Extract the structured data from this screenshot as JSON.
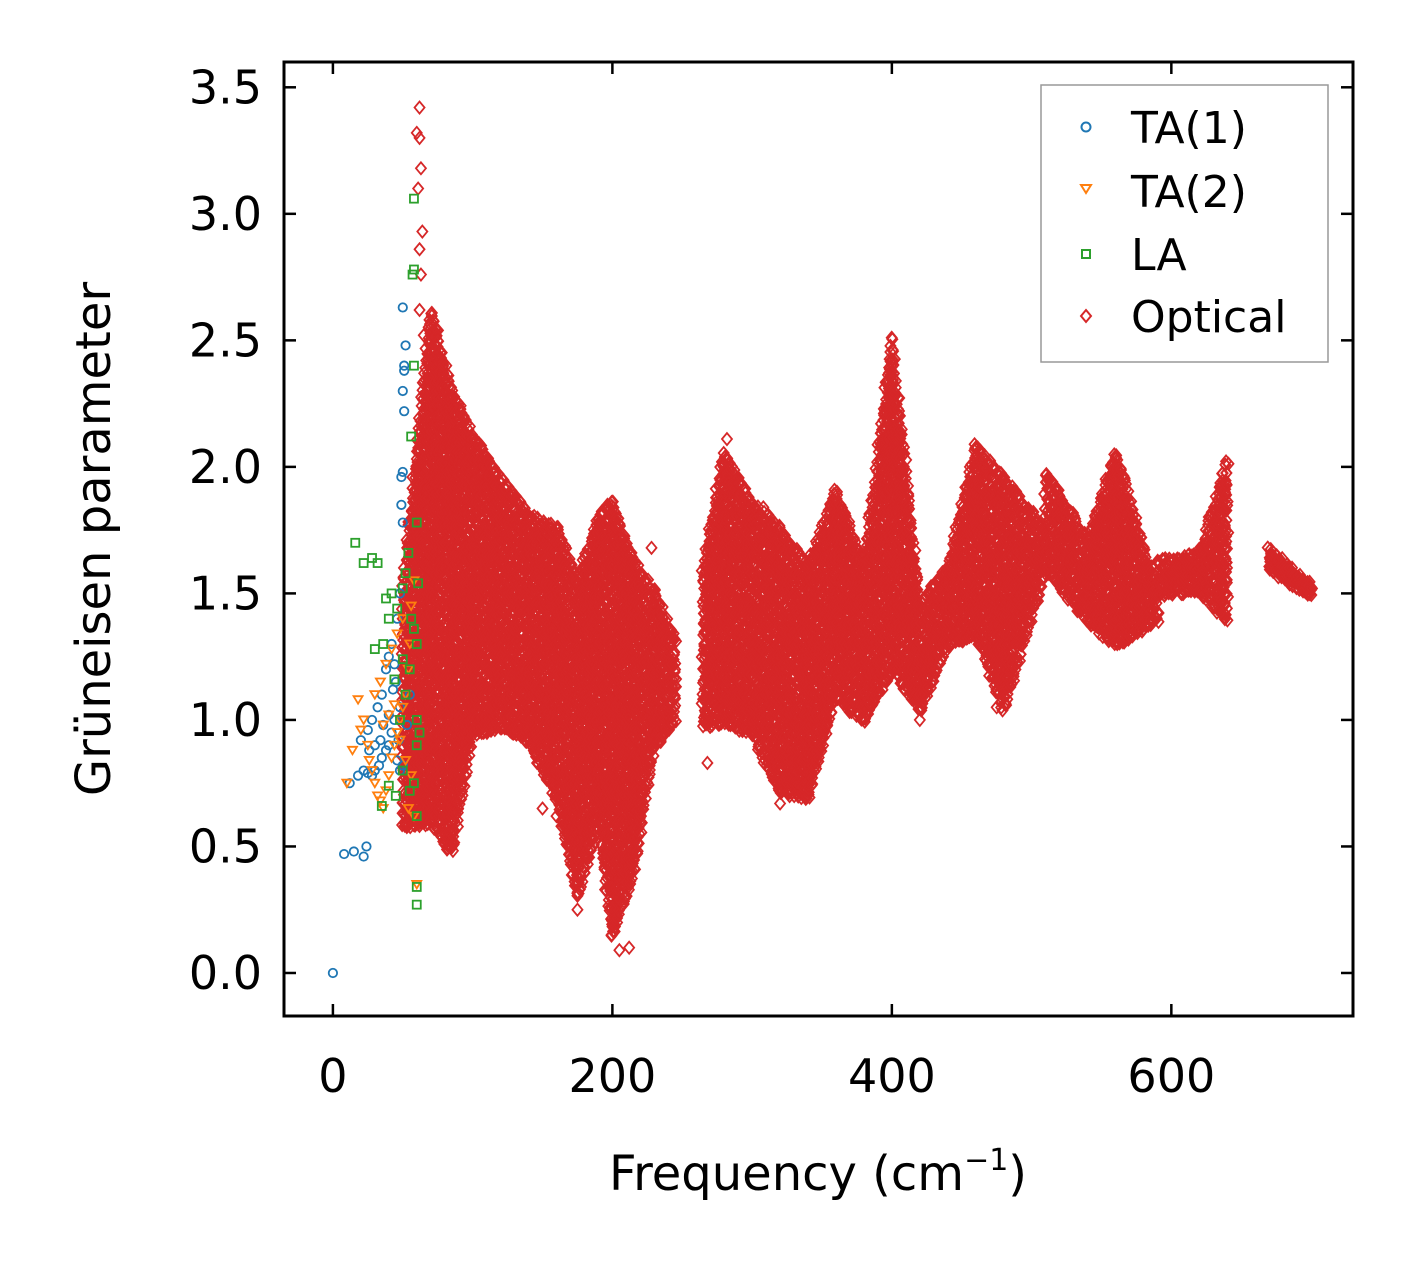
{
  "chart_data": {
    "type": "scatter",
    "title": "",
    "xlabel": "Frequency (cm",
    "xlabel_sup": "−1",
    "xlabel_close": ")",
    "ylabel": "Grüneisen parameter",
    "xlim": [
      -35,
      730
    ],
    "ylim": [
      -0.17,
      3.6
    ],
    "xticks": [
      0,
      200,
      400,
      600
    ],
    "xtick_labels": [
      "0",
      "200",
      "400",
      "600"
    ],
    "yticks": [
      0.0,
      0.5,
      1.0,
      1.5,
      2.0,
      2.5,
      3.0,
      3.5
    ],
    "ytick_labels": [
      "0.0",
      "0.5",
      "1.0",
      "1.5",
      "2.0",
      "2.5",
      "3.0",
      "3.5"
    ],
    "grid": false,
    "legend_position": "top-right",
    "series": [
      {
        "name": "TA(1)",
        "marker": "circle",
        "color": "#1f77b4",
        "points": [
          [
            0,
            0.0
          ],
          [
            8,
            0.47
          ],
          [
            15,
            0.48
          ],
          [
            22,
            0.46
          ],
          [
            24,
            0.5
          ],
          [
            12,
            0.75
          ],
          [
            18,
            0.78
          ],
          [
            22,
            0.8
          ],
          [
            25,
            0.79
          ],
          [
            28,
            0.78
          ],
          [
            30,
            0.8
          ],
          [
            33,
            0.82
          ],
          [
            35,
            0.85
          ],
          [
            38,
            0.88
          ],
          [
            40,
            0.9
          ],
          [
            42,
            0.95
          ],
          [
            44,
            1.0
          ],
          [
            46,
            0.84
          ],
          [
            48,
            0.8
          ],
          [
            50,
            0.82
          ],
          [
            25,
            0.96
          ],
          [
            28,
            1.0
          ],
          [
            32,
            1.05
          ],
          [
            35,
            1.1
          ],
          [
            38,
            1.2
          ],
          [
            40,
            1.25
          ],
          [
            42,
            1.3
          ],
          [
            45,
            1.15
          ],
          [
            48,
            1.05
          ],
          [
            30,
            0.9
          ],
          [
            36,
            0.98
          ],
          [
            44,
            1.22
          ],
          [
            46,
            1.4
          ],
          [
            48,
            1.5
          ],
          [
            50,
            1.78
          ],
          [
            49,
            1.85
          ],
          [
            49,
            1.96
          ],
          [
            50,
            1.98
          ],
          [
            51,
            2.22
          ],
          [
            50,
            2.3
          ],
          [
            51,
            2.38
          ],
          [
            51,
            2.4
          ],
          [
            52,
            2.48
          ],
          [
            50,
            2.63
          ],
          [
            53,
            0.98
          ],
          [
            55,
            1.1
          ],
          [
            20,
            0.92
          ],
          [
            26,
            0.88
          ],
          [
            34,
            0.92
          ],
          [
            40,
            1.02
          ],
          [
            43,
            1.12
          ],
          [
            47,
            0.92
          ]
        ]
      },
      {
        "name": "TA(2)",
        "marker": "triangle-down",
        "color": "#ff7f0e",
        "points": [
          [
            10,
            0.75
          ],
          [
            14,
            0.88
          ],
          [
            18,
            1.08
          ],
          [
            22,
            1.0
          ],
          [
            25,
            0.9
          ],
          [
            28,
            0.8
          ],
          [
            30,
            0.75
          ],
          [
            32,
            0.7
          ],
          [
            34,
            0.68
          ],
          [
            36,
            0.65
          ],
          [
            38,
            0.72
          ],
          [
            40,
            0.78
          ],
          [
            42,
            0.85
          ],
          [
            44,
            0.9
          ],
          [
            46,
            0.95
          ],
          [
            48,
            1.0
          ],
          [
            50,
            1.05
          ],
          [
            52,
            1.1
          ],
          [
            54,
            1.2
          ],
          [
            55,
            1.3
          ],
          [
            56,
            1.45
          ],
          [
            58,
            1.55
          ],
          [
            30,
            1.1
          ],
          [
            34,
            1.15
          ],
          [
            38,
            1.22
          ],
          [
            42,
            1.28
          ],
          [
            46,
            1.34
          ],
          [
            50,
            1.4
          ],
          [
            54,
            0.65
          ],
          [
            58,
            0.62
          ],
          [
            60,
            0.35
          ],
          [
            52,
            0.84
          ],
          [
            56,
            0.78
          ],
          [
            36,
            0.98
          ],
          [
            40,
            1.02
          ],
          [
            44,
            1.06
          ],
          [
            48,
            0.92
          ],
          [
            26,
            0.84
          ],
          [
            20,
            0.96
          ]
        ]
      },
      {
        "name": "LA",
        "marker": "square",
        "color": "#2ca02c",
        "points": [
          [
            16,
            1.7
          ],
          [
            22,
            1.62
          ],
          [
            28,
            1.64
          ],
          [
            32,
            1.62
          ],
          [
            38,
            1.48
          ],
          [
            42,
            1.5
          ],
          [
            36,
            1.3
          ],
          [
            30,
            1.28
          ],
          [
            40,
            1.4
          ],
          [
            46,
            1.44
          ],
          [
            50,
            1.52
          ],
          [
            52,
            1.58
          ],
          [
            54,
            1.66
          ],
          [
            56,
            1.4
          ],
          [
            58,
            1.36
          ],
          [
            60,
            1.3
          ],
          [
            56,
            2.12
          ],
          [
            58,
            2.4
          ],
          [
            57,
            2.76
          ],
          [
            58,
            2.78
          ],
          [
            58,
            3.06
          ],
          [
            60,
            1.78
          ],
          [
            61,
            1.54
          ],
          [
            55,
            1.2
          ],
          [
            60,
            1.0
          ],
          [
            62,
            0.95
          ],
          [
            60,
            0.9
          ],
          [
            58,
            0.75
          ],
          [
            55,
            0.72
          ],
          [
            50,
            0.8
          ],
          [
            45,
            0.7
          ],
          [
            35,
            0.66
          ],
          [
            40,
            0.74
          ],
          [
            60,
            0.62
          ],
          [
            60,
            0.34
          ],
          [
            60,
            0.27
          ],
          [
            48,
            1.0
          ],
          [
            52,
            1.1
          ],
          [
            44,
            1.16
          ],
          [
            50,
            1.24
          ]
        ]
      },
      {
        "name": "Optical",
        "marker": "diamond",
        "color": "#d62728",
        "groups": [
          {
            "x": [
              50,
              70
            ],
            "y_top": [
              1.52,
              2.62
            ],
            "y_bottom": [
              0.58,
              0.6
            ]
          },
          {
            "x": [
              70,
              85
            ],
            "y_top": [
              2.62,
              2.3
            ],
            "y_bottom": [
              0.6,
              0.48
            ]
          },
          {
            "x": [
              85,
              100
            ],
            "y_top": [
              2.3,
              2.12
            ],
            "y_bottom": [
              0.48,
              0.95
            ]
          },
          {
            "x": [
              100,
              120
            ],
            "y_top": [
              2.12,
              1.95
            ],
            "y_bottom": [
              0.95,
              0.98
            ]
          },
          {
            "x": [
              120,
              140
            ],
            "y_top": [
              1.95,
              1.8
            ],
            "y_bottom": [
              0.98,
              0.92
            ]
          },
          {
            "x": [
              140,
              160
            ],
            "y_top": [
              1.8,
              1.75
            ],
            "y_bottom": [
              0.92,
              0.7
            ]
          },
          {
            "x": [
              160,
              175
            ],
            "y_top": [
              1.75,
              1.55
            ],
            "y_bottom": [
              0.7,
              0.3
            ]
          },
          {
            "x": [
              175,
              190
            ],
            "y_top": [
              1.55,
              1.8
            ],
            "y_bottom": [
              0.3,
              0.6
            ]
          },
          {
            "x": [
              190,
              200
            ],
            "y_top": [
              1.8,
              1.85
            ],
            "y_bottom": [
              0.6,
              0.15
            ]
          },
          {
            "x": [
              200,
              215
            ],
            "y_top": [
              1.85,
              1.62
            ],
            "y_bottom": [
              0.15,
              0.4
            ]
          },
          {
            "x": [
              215,
              230
            ],
            "y_top": [
              1.62,
              1.5
            ],
            "y_bottom": [
              0.4,
              0.9
            ]
          },
          {
            "x": [
              230,
              245
            ],
            "y_top": [
              1.5,
              1.3
            ],
            "y_bottom": [
              0.9,
              1.0
            ]
          },
          {
            "x": [
              265,
              280
            ],
            "y_top": [
              1.6,
              2.05
            ],
            "y_bottom": [
              0.98,
              1.0
            ]
          },
          {
            "x": [
              280,
              300
            ],
            "y_top": [
              2.05,
              1.85
            ],
            "y_bottom": [
              1.0,
              0.95
            ]
          },
          {
            "x": [
              300,
              320
            ],
            "y_top": [
              1.85,
              1.75
            ],
            "y_bottom": [
              0.95,
              0.72
            ]
          },
          {
            "x": [
              320,
              340
            ],
            "y_top": [
              1.75,
              1.6
            ],
            "y_bottom": [
              0.72,
              0.7
            ]
          },
          {
            "x": [
              340,
              360
            ],
            "y_top": [
              1.6,
              1.9
            ],
            "y_bottom": [
              0.7,
              1.1
            ]
          },
          {
            "x": [
              360,
              380
            ],
            "y_top": [
              1.9,
              1.6
            ],
            "y_bottom": [
              1.1,
              1.0
            ]
          },
          {
            "x": [
              380,
              400
            ],
            "y_top": [
              1.6,
              2.5
            ],
            "y_bottom": [
              1.0,
              1.2
            ]
          },
          {
            "x": [
              400,
              420
            ],
            "y_top": [
              2.5,
              1.45
            ],
            "y_bottom": [
              1.2,
              1.05
            ]
          },
          {
            "x": [
              420,
              440
            ],
            "y_top": [
              1.45,
              1.6
            ],
            "y_bottom": [
              1.05,
              1.3
            ]
          },
          {
            "x": [
              440,
              460
            ],
            "y_top": [
              1.6,
              2.08
            ],
            "y_bottom": [
              1.3,
              1.35
            ]
          },
          {
            "x": [
              460,
              480
            ],
            "y_top": [
              2.08,
              1.95
            ],
            "y_bottom": [
              1.35,
              1.05
            ]
          },
          {
            "x": [
              480,
              510
            ],
            "y_top": [
              1.95,
              1.75
            ],
            "y_bottom": [
              1.05,
              1.6
            ]
          },
          {
            "x": [
              510,
              540
            ],
            "y_top": [
              1.98,
              1.7
            ],
            "y_bottom": [
              1.6,
              1.4
            ]
          },
          {
            "x": [
              540,
              560
            ],
            "y_top": [
              1.7,
              2.05
            ],
            "y_bottom": [
              1.4,
              1.3
            ]
          },
          {
            "x": [
              560,
              590
            ],
            "y_top": [
              2.05,
              1.5
            ],
            "y_bottom": [
              1.3,
              1.4
            ]
          },
          {
            "x": [
              590,
              620
            ],
            "y_top": [
              1.62,
              1.65
            ],
            "y_bottom": [
              1.5,
              1.52
            ]
          },
          {
            "x": [
              620,
              640
            ],
            "y_top": [
              1.65,
              2.02
            ],
            "y_bottom": [
              1.52,
              1.4
            ]
          },
          {
            "x": [
              670,
              700
            ],
            "y_top": [
              1.67,
              1.52
            ],
            "y_bottom": [
              1.6,
              1.5
            ]
          }
        ],
        "outliers": [
          [
            62,
            3.42
          ],
          [
            60,
            3.32
          ],
          [
            62,
            3.3
          ],
          [
            63,
            3.18
          ],
          [
            61,
            3.1
          ],
          [
            64,
            2.93
          ],
          [
            62,
            2.86
          ],
          [
            63,
            2.76
          ],
          [
            62,
            2.62
          ],
          [
            65,
            2.52
          ],
          [
            150,
            0.65
          ],
          [
            160,
            0.62
          ],
          [
            175,
            0.25
          ],
          [
            205,
            0.09
          ],
          [
            212,
            0.1
          ],
          [
            228,
            1.68
          ],
          [
            268,
            0.83
          ],
          [
            282,
            2.11
          ],
          [
            308,
            1.84
          ],
          [
            320,
            0.67
          ],
          [
            420,
            1.0
          ],
          [
            475,
            1.05
          ],
          [
            420,
            1.1
          ],
          [
            95,
            0.78
          ]
        ]
      }
    ]
  },
  "legend": {
    "items": [
      "TA(1)",
      "TA(2)",
      "LA",
      "Optical"
    ]
  }
}
